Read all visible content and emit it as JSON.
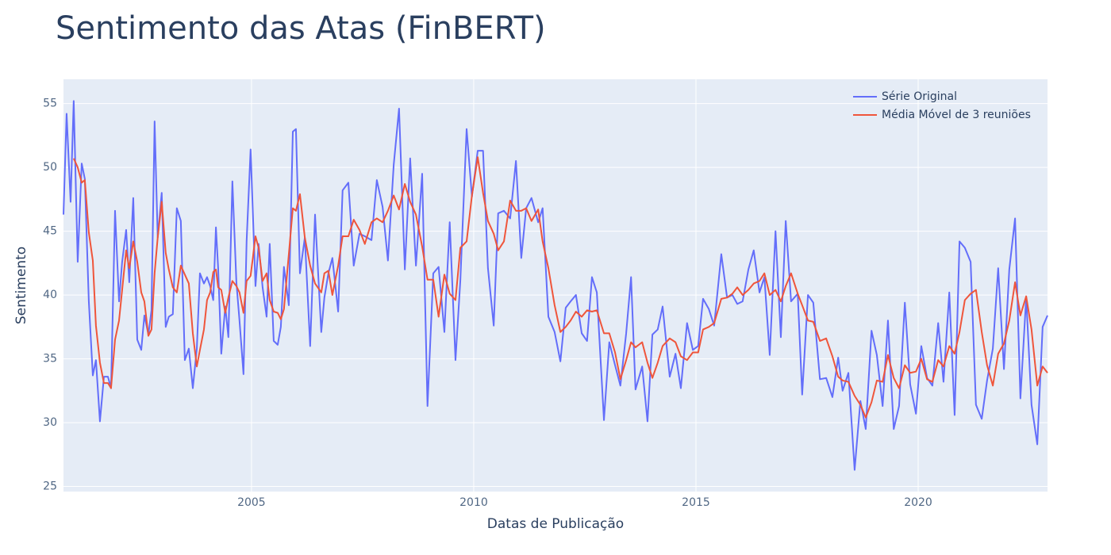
{
  "chart_data": {
    "type": "line",
    "title": "Sentimento das Atas (FinBERT)",
    "x_label": "Datas de Publicação",
    "y_label": "Sentimento",
    "xlim": [
      2000.77,
      2022.91
    ],
    "xticks": [
      2005,
      2010,
      2015,
      2020
    ],
    "ylim": [
      24.6,
      56.9
    ],
    "yticks": [
      25,
      30,
      35,
      40,
      45,
      50,
      55
    ],
    "grid": true,
    "legend_position": "top-right",
    "x": [
      2000.77,
      2000.84,
      2000.93,
      2001.0,
      2001.09,
      2001.18,
      2001.25,
      2001.34,
      2001.43,
      2001.5,
      2001.59,
      2001.68,
      2001.77,
      2001.84,
      2001.93,
      2002.02,
      2002.09,
      2002.18,
      2002.25,
      2002.34,
      2002.43,
      2002.52,
      2002.59,
      2002.68,
      2002.75,
      2002.82,
      2002.89,
      2002.98,
      2003.07,
      2003.14,
      2003.23,
      2003.32,
      2003.41,
      2003.5,
      2003.59,
      2003.68,
      2003.77,
      2003.84,
      2003.93,
      2004.0,
      2004.07,
      2004.14,
      2004.2,
      2004.25,
      2004.32,
      2004.41,
      2004.48,
      2004.57,
      2004.66,
      2004.73,
      2004.82,
      2004.89,
      2004.98,
      2005.09,
      2005.16,
      2005.25,
      2005.34,
      2005.41,
      2005.5,
      2005.59,
      2005.66,
      2005.73,
      2005.84,
      2005.93,
      2006.0,
      2006.09,
      2006.2,
      2006.32,
      2006.43,
      2006.57,
      2006.64,
      2006.73,
      2006.82,
      2006.95,
      2007.05,
      2007.18,
      2007.3,
      2007.43,
      2007.55,
      2007.7,
      2007.82,
      2007.95,
      2008.07,
      2008.2,
      2008.32,
      2008.45,
      2008.57,
      2008.7,
      2008.84,
      2008.96,
      2009.09,
      2009.21,
      2009.34,
      2009.46,
      2009.59,
      2009.7,
      2009.84,
      2009.96,
      2010.09,
      2010.21,
      2010.32,
      2010.45,
      2010.55,
      2010.68,
      2010.82,
      2010.95,
      2011.07,
      2011.18,
      2011.3,
      2011.45,
      2011.55,
      2011.68,
      2011.82,
      2011.95,
      2012.07,
      2012.18,
      2012.3,
      2012.43,
      2012.55,
      2012.66,
      2012.77,
      2012.93,
      2013.05,
      2013.18,
      2013.3,
      2013.43,
      2013.54,
      2013.64,
      2013.79,
      2013.91,
      2014.02,
      2014.14,
      2014.25,
      2014.41,
      2014.54,
      2014.66,
      2014.8,
      2014.93,
      2015.05,
      2015.16,
      2015.29,
      2015.41,
      2015.57,
      2015.7,
      2015.82,
      2015.93,
      2016.05,
      2016.18,
      2016.3,
      2016.43,
      2016.54,
      2016.66,
      2016.79,
      2016.91,
      2017.02,
      2017.14,
      2017.29,
      2017.39,
      2017.52,
      2017.64,
      2017.79,
      2017.93,
      2018.07,
      2018.2,
      2018.3,
      2018.43,
      2018.57,
      2018.7,
      2018.82,
      2018.95,
      2019.07,
      2019.2,
      2019.32,
      2019.45,
      2019.57,
      2019.7,
      2019.82,
      2019.95,
      2020.07,
      2020.2,
      2020.32,
      2020.45,
      2020.57,
      2020.7,
      2020.82,
      2020.93,
      2021.05,
      2021.18,
      2021.3,
      2021.43,
      2021.55,
      2021.68,
      2021.8,
      2021.93,
      2022.05,
      2022.18,
      2022.3,
      2022.43,
      2022.55,
      2022.68,
      2022.8,
      2022.91
    ],
    "series": [
      {
        "name": "Série Original",
        "color": "#636efa",
        "values": [
          46.3,
          54.2,
          47.3,
          55.2,
          42.6,
          50.3,
          49.1,
          39.5,
          33.7,
          34.9,
          30.1,
          33.6,
          33.6,
          32.7,
          46.6,
          39.5,
          42.6,
          45.1,
          41.0,
          47.6,
          36.5,
          35.7,
          38.4,
          36.9,
          38.8,
          53.6,
          44.5,
          48.0,
          37.5,
          38.3,
          38.5,
          46.8,
          45.8,
          34.9,
          35.8,
          32.7,
          35.8,
          41.7,
          40.9,
          41.4,
          40.7,
          39.6,
          45.3,
          42.1,
          35.4,
          39.1,
          36.7,
          48.9,
          41.0,
          38.0,
          33.8,
          44.2,
          51.4,
          40.7,
          44.0,
          40.6,
          38.3,
          44.0,
          36.4,
          36.1,
          37.5,
          42.2,
          39.2,
          52.8,
          53.0,
          41.7,
          44.5,
          36.0,
          46.3,
          37.1,
          39.8,
          41.7,
          42.9,
          38.7,
          48.2,
          48.8,
          42.3,
          44.8,
          44.6,
          44.3,
          49.0,
          46.9,
          42.7,
          50.2,
          54.6,
          42.0,
          50.7,
          42.3,
          49.5,
          31.3,
          41.7,
          42.2,
          37.1,
          45.7,
          34.9,
          41.2,
          53.0,
          47.7,
          51.3,
          51.3,
          42.1,
          37.6,
          46.4,
          46.6,
          46.0,
          50.5,
          42.9,
          46.8,
          47.6,
          45.7,
          46.8,
          38.3,
          37.1,
          34.8,
          39.0,
          39.5,
          40.0,
          37.0,
          36.4,
          41.4,
          40.2,
          30.2,
          36.3,
          34.5,
          32.9,
          37.0,
          41.4,
          32.6,
          34.4,
          30.1,
          36.9,
          37.3,
          39.1,
          33.6,
          35.4,
          32.7,
          37.8,
          35.7,
          36.0,
          39.7,
          38.9,
          37.6,
          43.2,
          39.8,
          40.0,
          39.3,
          39.5,
          42.0,
          43.5,
          40.2,
          41.4,
          35.3,
          45.0,
          36.7,
          45.8,
          39.5,
          40.1,
          32.2,
          40.0,
          39.4,
          33.4,
          33.5,
          32.0,
          35.1,
          32.5,
          33.9,
          26.3,
          31.7,
          29.5,
          37.2,
          35.3,
          31.3,
          38.0,
          29.5,
          31.3,
          39.4,
          33.0,
          30.7,
          36.0,
          33.5,
          32.9,
          37.8,
          33.2,
          40.2,
          30.6,
          44.2,
          43.7,
          42.6,
          31.4,
          30.3,
          33.3,
          35.8,
          42.1,
          34.2,
          42.0,
          46.0,
          31.9,
          39.8,
          31.4,
          28.3,
          37.5,
          38.4
        ]
      },
      {
        "name": "Média Móvel de 3 reuniões",
        "color": "#ef553b",
        "values": [
          null,
          null,
          null,
          50.7,
          50.0,
          48.8,
          49.0,
          44.9,
          42.7,
          37.6,
          34.7,
          33.1,
          33.1,
          32.7,
          36.5,
          38.0,
          40.4,
          43.5,
          42.1,
          44.2,
          42.6,
          40.2,
          39.5,
          36.8,
          37.3,
          41.7,
          44.5,
          47.3,
          43.3,
          42.0,
          40.6,
          40.2,
          42.3,
          41.6,
          40.9,
          37.0,
          34.4,
          35.7,
          37.3,
          39.6,
          40.2,
          41.8,
          42.0,
          40.6,
          40.4,
          38.6,
          39.8,
          41.1,
          40.7,
          40.2,
          38.6,
          41.1,
          41.5,
          44.6,
          43.7,
          41.1,
          41.7,
          39.6,
          38.7,
          38.6,
          38.1,
          38.9,
          43.2,
          46.8,
          46.6,
          47.9,
          44.5,
          42.3,
          40.9,
          40.2,
          41.7,
          41.9,
          40.0,
          42.3,
          44.6,
          44.6,
          45.9,
          45.1,
          44.0,
          45.7,
          46.0,
          45.7,
          46.6,
          47.8,
          46.7,
          48.7,
          47.3,
          46.3,
          43.8,
          41.2,
          41.2,
          38.3,
          41.6,
          40.1,
          39.6,
          43.7,
          44.2,
          47.8,
          50.8,
          48.0,
          45.8,
          44.8,
          43.5,
          44.2,
          47.4,
          46.6,
          46.6,
          46.8,
          45.8,
          46.7,
          44.2,
          42.1,
          39.2,
          37.1,
          37.5,
          38.0,
          38.7,
          38.3,
          38.8,
          38.7,
          38.8,
          37.0,
          37.0,
          35.5,
          33.4,
          34.9,
          36.3,
          35.9,
          36.3,
          34.7,
          33.5,
          34.7,
          36.0,
          36.6,
          36.3,
          35.2,
          34.9,
          35.5,
          35.5,
          37.3,
          37.5,
          37.8,
          39.7,
          39.8,
          40.1,
          40.6,
          40.0,
          40.4,
          40.9,
          41.1,
          41.7,
          40.0,
          40.4,
          39.5,
          40.7,
          41.7,
          40.1,
          39.2,
          38.0,
          37.9,
          36.4,
          36.6,
          35.2,
          33.6,
          33.3,
          33.2,
          32.1,
          31.4,
          30.4,
          31.6,
          33.3,
          33.2,
          35.3,
          33.5,
          32.7,
          34.5,
          33.9,
          34.0,
          35.0,
          33.4,
          33.2,
          34.9,
          34.4,
          36.0,
          35.4,
          37.1,
          39.6,
          40.1,
          40.4,
          37.1,
          34.5,
          32.9,
          35.4,
          36.2,
          38.0,
          41.0,
          38.4,
          39.9,
          37.3,
          32.9,
          34.4,
          33.9
        ]
      }
    ]
  }
}
